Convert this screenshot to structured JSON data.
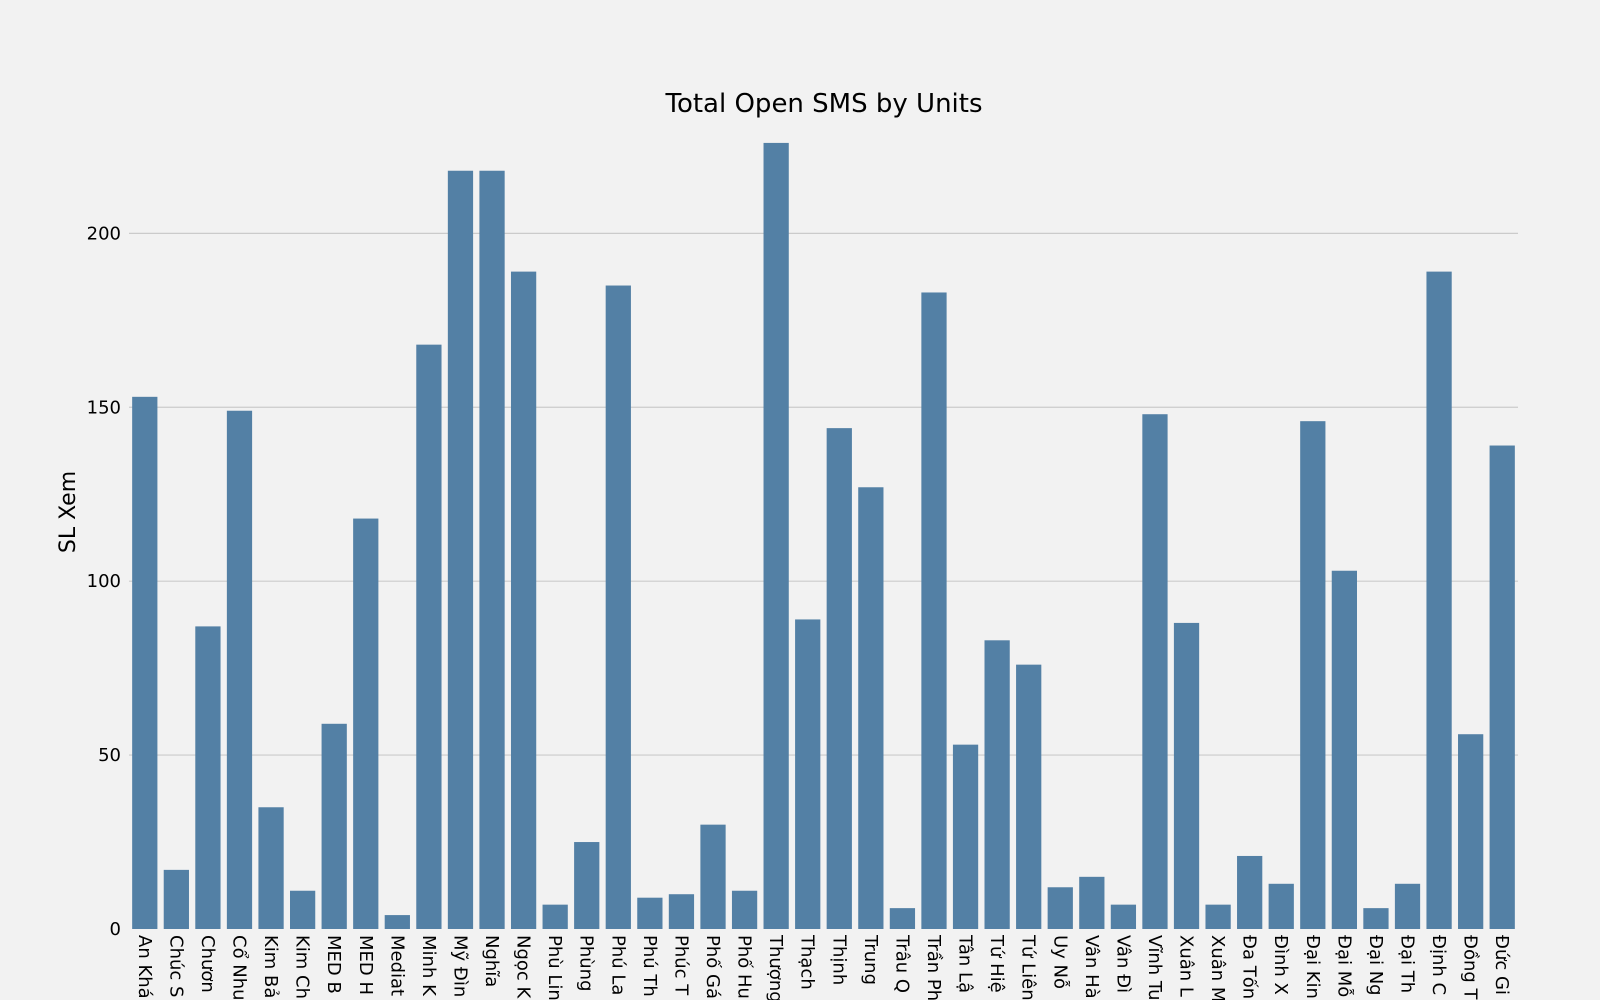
{
  "chart_data": {
    "type": "bar",
    "title": "Total Open SMS by Units",
    "xlabel": "",
    "ylabel": "SL Xem",
    "ylim": [
      0,
      230
    ],
    "yticks": [
      0,
      50,
      100,
      150,
      200
    ],
    "grid": "horizontal",
    "bar_color": "#5380a5",
    "background": "#f2f2f2",
    "categories": [
      "An Khá",
      "Chúc S",
      "Chươn",
      "Cổ Nhu",
      "Kim Bả",
      "Kim Ch",
      "MED B",
      "MED H",
      "Mediat",
      "Minh K",
      "Mỹ Đìn",
      "Nghĩa",
      "Ngọc K",
      "Phù Lin",
      "Phùng",
      "Phú La",
      "Phú Th",
      "Phúc T",
      "Phố Gá",
      "Phố Hu",
      "Thượng",
      "Thạch",
      "Thịnh",
      "Trung",
      "Trâu Q",
      "Trần Ph",
      "Tân Lậ",
      "Tứ Hiệ",
      "Tứ Liên",
      "Uy Nỗ",
      "Vân Hà",
      "Vân Đì",
      "Vĩnh Tu",
      "Xuân L",
      "Xuân M",
      "Đa Tốn",
      "Đình X",
      "Đại Kin",
      "Đại Mỗ",
      "Đại Ng",
      "Đại Th",
      "Định C",
      "Đồng T",
      "Đức Gi"
    ],
    "values": [
      153,
      17,
      87,
      149,
      35,
      11,
      59,
      118,
      4,
      168,
      218,
      218,
      189,
      7,
      25,
      185,
      9,
      10,
      30,
      11,
      226,
      89,
      144,
      127,
      6,
      183,
      53,
      83,
      76,
      12,
      15,
      7,
      148,
      88,
      7,
      21,
      13,
      146,
      103,
      6,
      13,
      189,
      56,
      139
    ]
  }
}
